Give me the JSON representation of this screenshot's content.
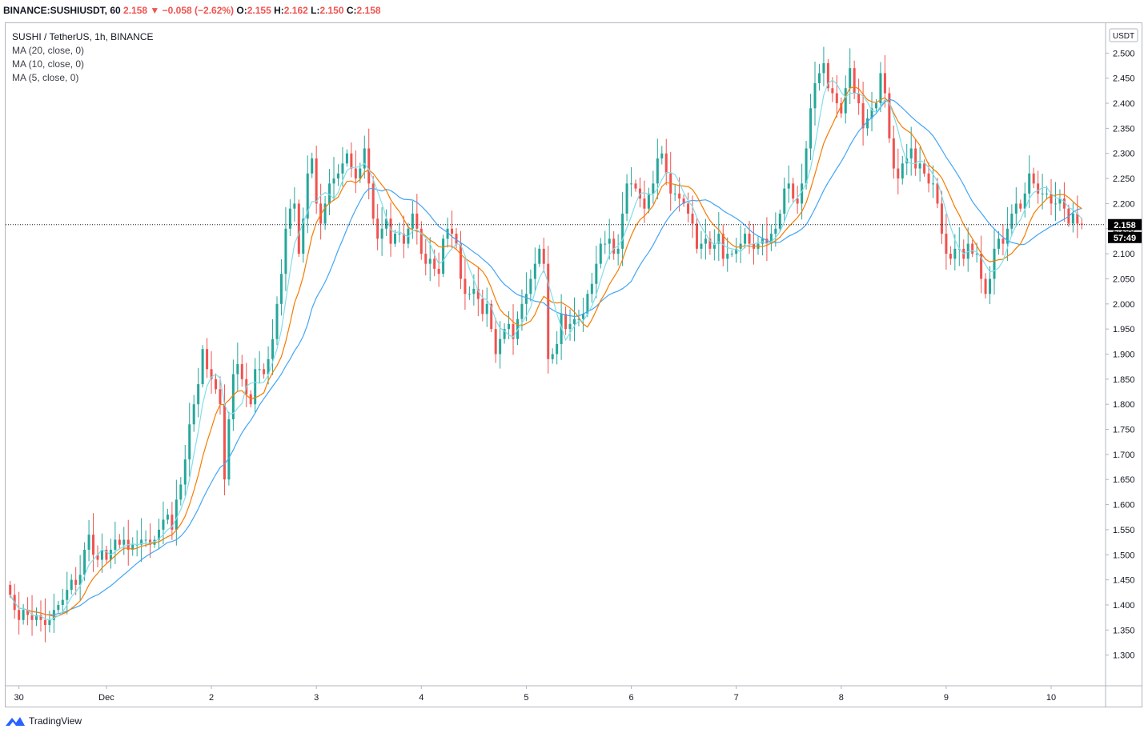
{
  "header": {
    "symbol_line": "BINANCE:SUSHIUSDT, 60",
    "last": "2.158",
    "change": "−0.058 (−2.62%)",
    "o_label": "O:",
    "o": "2.155",
    "h_label": "H:",
    "h": "2.162",
    "l_label": "L:",
    "l": "2.150",
    "c_label": "C:",
    "c": "2.158"
  },
  "legend": {
    "title": "SUSHI / TetherUS, 1h, BINANCE",
    "ma20": "MA (20, close, 0)",
    "ma10": "MA (10, close, 0)",
    "ma5": "MA (5, close, 0)"
  },
  "price_axis": {
    "currency_badge": "USDT",
    "current_price": "2.158",
    "countdown": "57:49"
  },
  "footer": {
    "brand": "TradingView"
  },
  "colors": {
    "up": "#26a69a",
    "down": "#ef5350",
    "ma20": "#42a5f5",
    "ma10": "#f57c00",
    "ma5": "#80deea",
    "price_badge": "#000000"
  },
  "chart_data": {
    "type": "candlestick",
    "symbol": "SUSHIUSDT",
    "interval": "1h",
    "ylim": [
      1.25,
      2.55
    ],
    "y_ticks": [
      "1.300",
      "1.350",
      "1.400",
      "1.450",
      "1.500",
      "1.550",
      "1.600",
      "1.650",
      "1.700",
      "1.750",
      "1.800",
      "1.850",
      "1.900",
      "1.950",
      "2.000",
      "2.050",
      "2.100",
      "2.150",
      "2.200",
      "2.250",
      "2.300",
      "2.350",
      "2.400",
      "2.450",
      "2.500"
    ],
    "x_ticks": [
      {
        "label": "30",
        "bar": 2
      },
      {
        "label": "Dec",
        "bar": 22
      },
      {
        "label": "2",
        "bar": 46
      },
      {
        "label": "3",
        "bar": 70
      },
      {
        "label": "4",
        "bar": 94
      },
      {
        "label": "5",
        "bar": 118
      },
      {
        "label": "6",
        "bar": 142
      },
      {
        "label": "7",
        "bar": 166
      },
      {
        "label": "8",
        "bar": 190
      },
      {
        "label": "9",
        "bar": 214
      },
      {
        "label": "10",
        "bar": 238
      }
    ],
    "current_price": 2.158,
    "series_close": [
      1.42,
      1.39,
      1.37,
      1.39,
      1.38,
      1.37,
      1.38,
      1.37,
      1.36,
      1.37,
      1.39,
      1.4,
      1.41,
      1.43,
      1.45,
      1.44,
      1.46,
      1.51,
      1.54,
      1.5,
      1.49,
      1.51,
      1.49,
      1.51,
      1.53,
      1.52,
      1.53,
      1.51,
      1.52,
      1.52,
      1.53,
      1.53,
      1.52,
      1.53,
      1.55,
      1.57,
      1.58,
      1.55,
      1.61,
      1.64,
      1.69,
      1.76,
      1.8,
      1.84,
      1.91,
      1.87,
      1.85,
      1.83,
      1.8,
      1.65,
      1.77,
      1.86,
      1.88,
      1.85,
      1.82,
      1.8,
      1.87,
      1.87,
      1.86,
      1.89,
      1.93,
      2.0,
      2.06,
      2.15,
      2.19,
      2.2,
      2.1,
      2.17,
      2.26,
      2.29,
      2.2,
      2.16,
      2.2,
      2.24,
      2.25,
      2.26,
      2.28,
      2.3,
      2.27,
      2.25,
      2.27,
      2.31,
      2.24,
      2.17,
      2.13,
      2.15,
      2.17,
      2.12,
      2.14,
      2.14,
      2.12,
      2.15,
      2.18,
      2.15,
      2.1,
      2.08,
      2.09,
      2.07,
      2.06,
      2.13,
      2.15,
      2.14,
      2.12,
      2.05,
      2.02,
      2.02,
      2.03,
      2.01,
      1.98,
      2.0,
      1.95,
      1.9,
      1.93,
      1.95,
      1.96,
      1.93,
      1.97,
      2.0,
      2.02,
      2.05,
      2.08,
      2.11,
      2.08,
      1.89,
      1.9,
      1.92,
      1.98,
      1.95,
      1.96,
      1.97,
      1.97,
      1.98,
      2.02,
      2.04,
      2.08,
      2.12,
      2.12,
      2.13,
      2.1,
      2.11,
      2.18,
      2.24,
      2.24,
      2.23,
      2.21,
      2.19,
      2.22,
      2.24,
      2.29,
      2.3,
      2.26,
      2.22,
      2.22,
      2.21,
      2.2,
      2.18,
      2.16,
      2.11,
      2.12,
      2.13,
      2.11,
      2.12,
      2.14,
      2.09,
      2.1,
      2.1,
      2.11,
      2.12,
      2.14,
      2.12,
      2.11,
      2.12,
      2.13,
      2.12,
      2.14,
      2.15,
      2.18,
      2.23,
      2.24,
      2.21,
      2.2,
      2.24,
      2.31,
      2.39,
      2.44,
      2.46,
      2.48,
      2.43,
      2.42,
      2.4,
      2.38,
      2.43,
      2.47,
      2.42,
      2.4,
      2.35,
      2.37,
      2.39,
      2.4,
      2.46,
      2.42,
      2.33,
      2.27,
      2.25,
      2.28,
      2.29,
      2.31,
      2.27,
      2.28,
      2.26,
      2.24,
      2.24,
      2.2,
      2.14,
      2.1,
      2.09,
      2.11,
      2.11,
      2.09,
      2.12,
      2.1,
      2.1,
      2.05,
      2.02,
      2.05,
      2.11,
      2.13,
      2.12,
      2.15,
      2.18,
      2.2,
      2.19,
      2.22,
      2.26,
      2.24,
      2.22,
      2.22,
      2.22,
      2.2,
      2.2,
      2.21,
      2.19,
      2.16,
      2.18,
      2.16,
      2.158
    ],
    "indicators": [
      "MA 20",
      "MA 10",
      "MA 5"
    ],
    "grid": false
  }
}
